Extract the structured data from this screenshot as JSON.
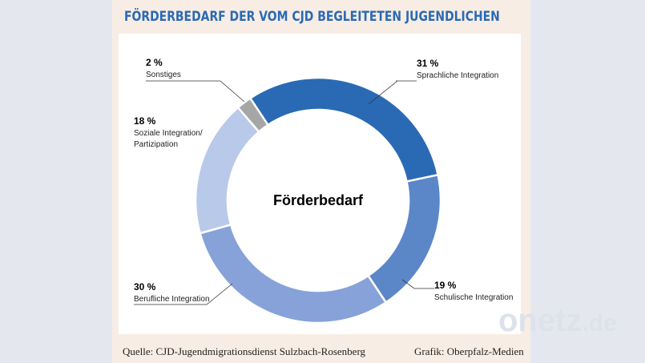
{
  "title": "FÖRDERBEDARF DER VOM CJD BEGLEITETEN JUGENDLICHEN",
  "footer": {
    "source": "Quelle: CJD-Jugendmigrationsdienst Sulzbach-Rosenberg",
    "credit": "Grafik: Oberpfalz-Medien"
  },
  "watermark": {
    "main": "onetz",
    "suffix": ".de"
  },
  "chart_data": {
    "type": "pie",
    "donut": true,
    "center_label": "Förderbedarf",
    "categories": [
      "Sprachliche Integration",
      "Schulische Integration",
      "Berufliche Integration",
      "Soziale Integration/ Partizipation",
      "Sonstiges"
    ],
    "values": [
      31,
      19,
      30,
      18,
      2
    ],
    "value_labels": [
      "31 %",
      "19 %",
      "30 %",
      "18 %",
      "2 %"
    ],
    "colors": [
      "#2a6ab5",
      "#5b87c8",
      "#86a2d8",
      "#b9c9ea",
      "#a6a6a6"
    ]
  }
}
